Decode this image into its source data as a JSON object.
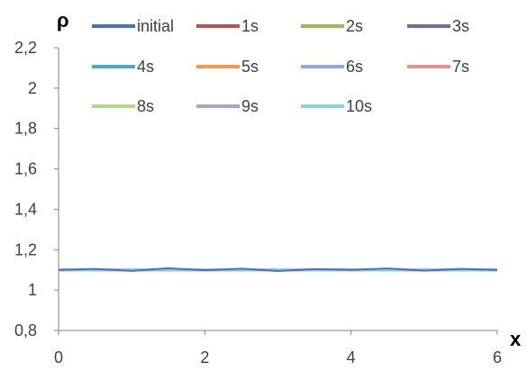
{
  "chart_data": {
    "type": "line",
    "ylabel": "ρ",
    "xlabel": "x",
    "xlim": [
      0,
      6
    ],
    "ylim": [
      0.8,
      2.2
    ],
    "xticks": [
      0,
      2,
      4,
      6
    ],
    "xtick_labels": [
      "0",
      "2",
      "4",
      "6"
    ],
    "yticks": [
      0.8,
      1,
      1.2,
      1.4,
      1.6,
      1.8,
      2,
      2.2
    ],
    "ytick_labels": [
      "0,8",
      "1",
      "1,2",
      "1,4",
      "1,6",
      "1,8",
      "2",
      "2,2"
    ],
    "grid": false,
    "legend_position": "top",
    "x": [
      0,
      0.5,
      1,
      1.5,
      2,
      2.5,
      3,
      3.5,
      4,
      4.5,
      5,
      5.5,
      6
    ],
    "series": [
      {
        "name": "initial",
        "color": "#4472C4",
        "values": [
          1.1,
          1.105,
          1.095,
          1.108,
          1.098,
          1.106,
          1.094,
          1.104,
          1.1,
          1.107,
          1.096,
          1.105,
          1.1
        ]
      },
      {
        "name": "1s",
        "color": "#C0504D",
        "values": [
          1.1,
          1.1,
          1.1,
          1.1,
          1.1,
          1.1,
          1.1,
          1.1,
          1.1,
          1.1,
          1.1,
          1.1,
          1.1
        ]
      },
      {
        "name": "2s",
        "color": "#9BBB59",
        "values": [
          1.1,
          1.1,
          1.1,
          1.1,
          1.1,
          1.1,
          1.1,
          1.1,
          1.1,
          1.1,
          1.1,
          1.1,
          1.1
        ]
      },
      {
        "name": "3s",
        "color": "#8064A2",
        "values": [
          1.1,
          1.1,
          1.1,
          1.1,
          1.1,
          1.1,
          1.1,
          1.1,
          1.1,
          1.1,
          1.1,
          1.1,
          1.1
        ]
      },
      {
        "name": "4s",
        "color": "#4BACC6",
        "values": [
          1.1,
          1.1,
          1.1,
          1.1,
          1.1,
          1.1,
          1.1,
          1.1,
          1.1,
          1.1,
          1.1,
          1.1,
          1.1
        ]
      },
      {
        "name": "5s",
        "color": "#F79646",
        "values": [
          1.1,
          1.1,
          1.1,
          1.1,
          1.1,
          1.1,
          1.1,
          1.1,
          1.1,
          1.1,
          1.1,
          1.1,
          1.1
        ]
      },
      {
        "name": "6s",
        "color": "#8EA9DB",
        "values": [
          1.1,
          1.1,
          1.1,
          1.1,
          1.1,
          1.1,
          1.1,
          1.1,
          1.1,
          1.1,
          1.1,
          1.1,
          1.1
        ]
      },
      {
        "name": "7s",
        "color": "#E6908E",
        "values": [
          1.1,
          1.1,
          1.1,
          1.1,
          1.1,
          1.1,
          1.1,
          1.1,
          1.1,
          1.1,
          1.1,
          1.1,
          1.1
        ]
      },
      {
        "name": "8s",
        "color": "#B6D391",
        "values": [
          1.1,
          1.1,
          1.1,
          1.1,
          1.1,
          1.1,
          1.1,
          1.1,
          1.1,
          1.1,
          1.1,
          1.1,
          1.1
        ]
      },
      {
        "name": "9s",
        "color": "#B3A2C7",
        "values": [
          1.1,
          1.1,
          1.1,
          1.1,
          1.1,
          1.1,
          1.1,
          1.1,
          1.1,
          1.1,
          1.1,
          1.1,
          1.1
        ]
      },
      {
        "name": "10s",
        "color": "#8DCDE0",
        "values": [
          1.1,
          1.1,
          1.1,
          1.1,
          1.1,
          1.1,
          1.1,
          1.1,
          1.1,
          1.1,
          1.1,
          1.1,
          1.1
        ]
      }
    ]
  }
}
